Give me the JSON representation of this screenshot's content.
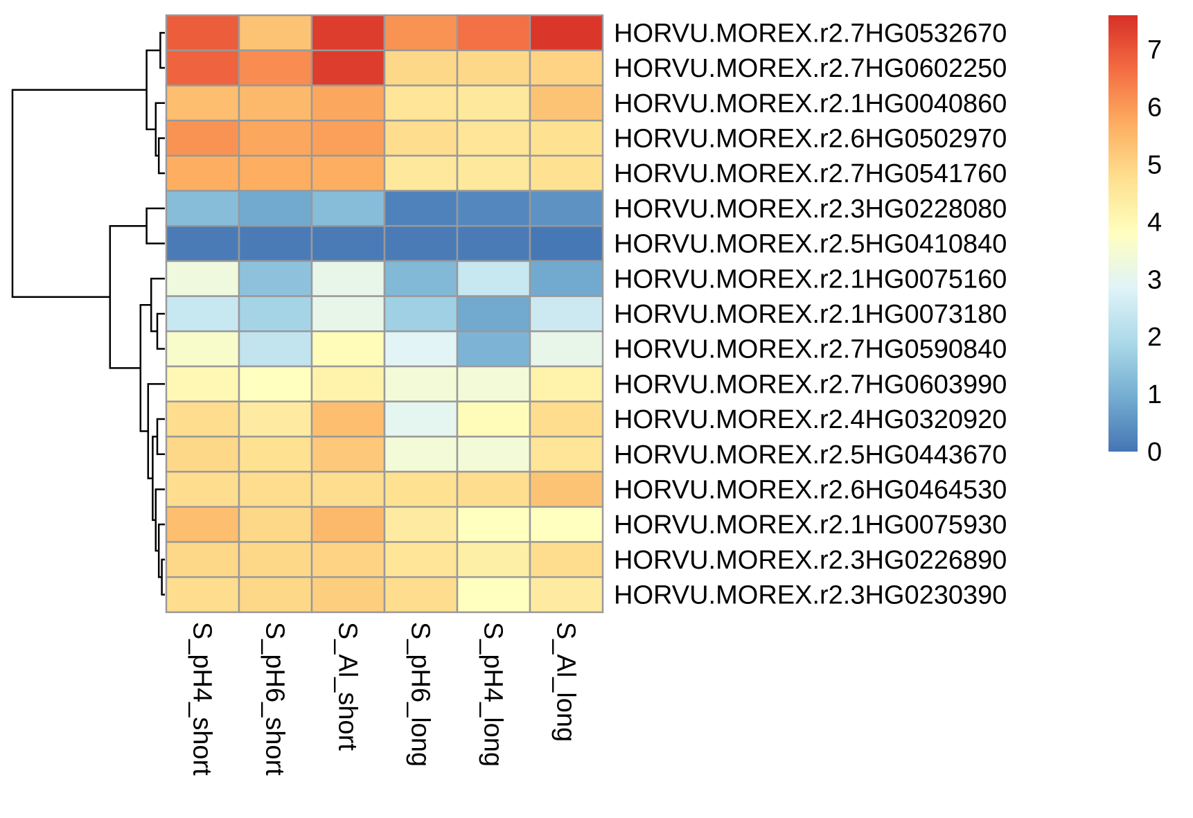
{
  "chart_data": {
    "type": "heatmap",
    "title": "",
    "xlabel": "",
    "ylabel": "",
    "columns": [
      "S_pH4_short",
      "S_pH6_short",
      "S_Al_short",
      "S_pH6_long",
      "S_pH4_long",
      "S_Al_long"
    ],
    "rows": [
      "HORVU.MOREX.r2.7HG0532670",
      "HORVU.MOREX.r2.7HG0602250",
      "HORVU.MOREX.r2.1HG0040860",
      "HORVU.MOREX.r2.6HG0502970",
      "HORVU.MOREX.r2.7HG0541760",
      "HORVU.MOREX.r2.3HG0228080",
      "HORVU.MOREX.r2.5HG0410840",
      "HORVU.MOREX.r2.1HG0075160",
      "HORVU.MOREX.r2.1HG0073180",
      "HORVU.MOREX.r2.7HG0590840",
      "HORVU.MOREX.r2.7HG0603990",
      "HORVU.MOREX.r2.4HG0320920",
      "HORVU.MOREX.r2.5HG0443670",
      "HORVU.MOREX.r2.6HG0464530",
      "HORVU.MOREX.r2.1HG0075930",
      "HORVU.MOREX.r2.3HG0226890",
      "HORVU.MOREX.r2.3HG0230390"
    ],
    "values": [
      [
        6.9,
        5.3,
        7.4,
        6.1,
        6.6,
        7.5
      ],
      [
        6.8,
        6.2,
        7.4,
        4.9,
        4.9,
        5.0
      ],
      [
        5.4,
        5.5,
        5.8,
        4.6,
        4.5,
        5.3
      ],
      [
        6.1,
        5.8,
        5.9,
        4.8,
        4.6,
        4.7
      ],
      [
        5.7,
        5.7,
        5.7,
        4.5,
        4.5,
        4.7
      ],
      [
        1.3,
        0.9,
        1.3,
        0.2,
        0.3,
        0.5
      ],
      [
        0.1,
        0.1,
        0.1,
        0.1,
        0.1,
        0.05
      ],
      [
        3.3,
        1.4,
        3.1,
        1.2,
        2.4,
        0.9
      ],
      [
        2.4,
        1.8,
        3.1,
        1.7,
        0.9,
        2.5
      ],
      [
        3.6,
        2.3,
        3.9,
        2.9,
        1.1,
        3.1
      ],
      [
        4.0,
        3.8,
        4.2,
        3.4,
        3.4,
        4.2
      ],
      [
        4.8,
        4.4,
        5.4,
        3.0,
        3.9,
        4.8
      ],
      [
        4.9,
        4.7,
        5.2,
        3.4,
        3.4,
        4.6
      ],
      [
        4.8,
        4.8,
        4.8,
        4.7,
        4.8,
        5.3
      ],
      [
        5.4,
        4.9,
        5.5,
        4.4,
        3.8,
        3.8
      ],
      [
        4.9,
        4.9,
        5.0,
        4.6,
        4.3,
        4.8
      ],
      [
        4.8,
        4.9,
        5.1,
        4.8,
        3.8,
        4.4
      ]
    ],
    "color_range": [
      0,
      7.6
    ],
    "colorscale": [
      "#4575b4",
      "#74add1",
      "#abd9e9",
      "#e0f3f8",
      "#ffffbf",
      "#fee090",
      "#fdae61",
      "#f46d43",
      "#d73027"
    ],
    "legend": {
      "placement": "right",
      "ticks": [
        "0",
        "1",
        "2",
        "3",
        "4",
        "5",
        "6",
        "7"
      ]
    },
    "row_dendrogram": {
      "merges": [
        [
          [
            1
          ],
          [
            2
          ]
        ],
        [
          [
            4
          ],
          [
            5
          ]
        ],
        [
          [
            3
          ],
          [
            4,
            5
          ]
        ],
        [
          [
            1,
            2
          ],
          [
            3,
            4,
            5
          ]
        ],
        [
          [
            6
          ],
          [
            7
          ]
        ],
        [
          [
            9
          ],
          [
            10
          ]
        ],
        [
          [
            8
          ],
          [
            9,
            10
          ]
        ],
        [
          [
            12
          ],
          [
            13
          ]
        ],
        [
          [
            16
          ],
          [
            17
          ]
        ],
        [
          [
            15
          ],
          [
            16,
            17
          ]
        ],
        [
          [
            14
          ],
          [
            15,
            16,
            17
          ]
        ],
        [
          [
            12,
            13
          ],
          [
            14,
            15,
            16,
            17
          ]
        ],
        [
          [
            11
          ],
          [
            12,
            13,
            14,
            15,
            16,
            17
          ]
        ],
        [
          [
            8,
            9,
            10
          ],
          [
            11,
            12,
            13,
            14,
            15,
            16,
            17
          ]
        ],
        [
          [
            6,
            7
          ],
          [
            8,
            9,
            10,
            11,
            12,
            13,
            14,
            15,
            16,
            17
          ]
        ],
        [
          [
            1,
            2,
            3,
            4,
            5
          ],
          [
            6,
            7,
            8,
            9,
            10,
            11,
            12,
            13,
            14,
            15,
            16,
            17
          ]
        ]
      ]
    }
  }
}
